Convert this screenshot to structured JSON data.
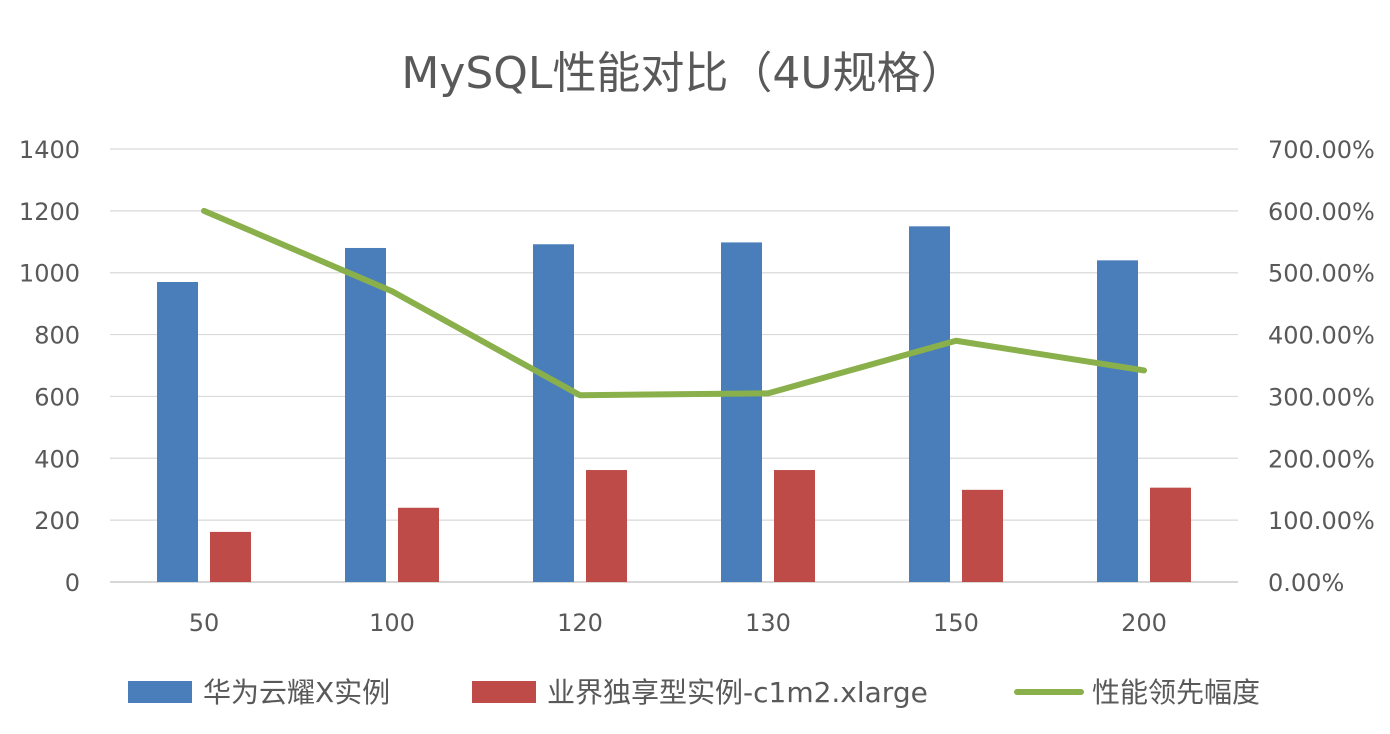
{
  "chart_data": {
    "type": "bar",
    "title": "MySQL性能对比（4U规格）",
    "categories": [
      "50",
      "100",
      "120",
      "130",
      "150",
      "200"
    ],
    "ylim": [
      0,
      1400
    ],
    "y2lim": [
      0,
      7
    ],
    "y_ticks": [
      "0",
      "200",
      "400",
      "600",
      "800",
      "1000",
      "1200",
      "1400"
    ],
    "y2_ticks": [
      "0.00%",
      "100.00%",
      "200.00%",
      "300.00%",
      "400.00%",
      "500.00%",
      "600.00%",
      "700.00%"
    ],
    "series": [
      {
        "name": "华为云耀X实例",
        "type": "bar",
        "axis": "left",
        "color": "#4a7ebb",
        "values": [
          970,
          1080,
          1092,
          1098,
          1150,
          1040
        ]
      },
      {
        "name": "业界独享型实例-c1m2.xlarge",
        "type": "bar",
        "axis": "left",
        "color": "#be4b48",
        "values": [
          162,
          240,
          362,
          362,
          298,
          305
        ]
      },
      {
        "name": "性能领先幅度",
        "type": "line",
        "axis": "right",
        "color": "#8ab04b",
        "values": [
          6.0,
          4.7,
          3.02,
          3.05,
          3.9,
          3.42
        ]
      }
    ],
    "grid": true,
    "legend": "bottom"
  }
}
